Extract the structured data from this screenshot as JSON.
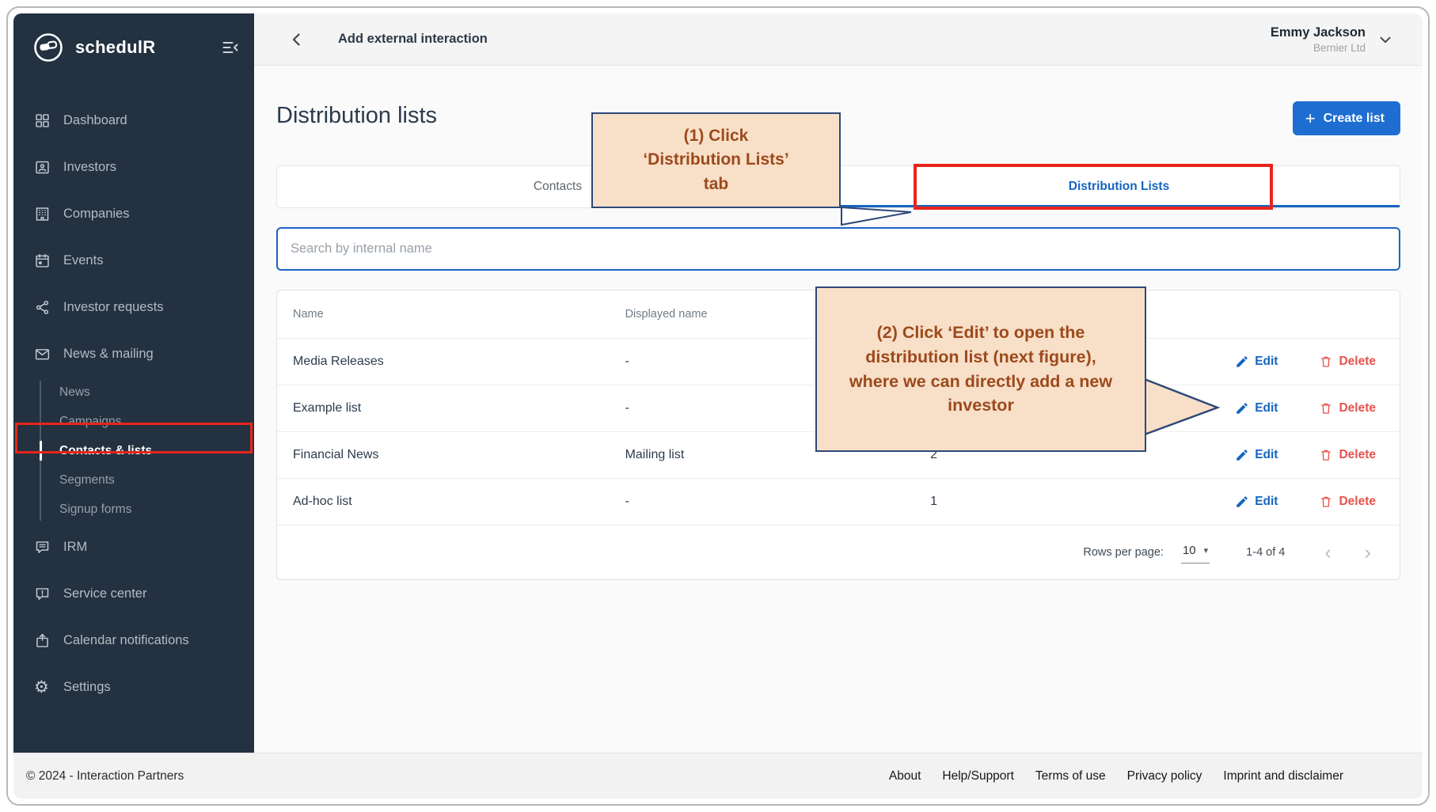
{
  "brand": {
    "name": "schedulR"
  },
  "topbar": {
    "title": "Add external interaction",
    "user_name": "Emmy Jackson",
    "user_company": "Bernier Ltd"
  },
  "sidebar": {
    "items": [
      {
        "label": "Dashboard",
        "icon": "dashboard"
      },
      {
        "label": "Investors",
        "icon": "investors"
      },
      {
        "label": "Companies",
        "icon": "companies"
      },
      {
        "label": "Events",
        "icon": "events"
      },
      {
        "label": "Investor requests",
        "icon": "investor-requests"
      },
      {
        "label": "News & mailing",
        "icon": "news-mailing"
      }
    ],
    "subitems": [
      {
        "label": "News",
        "active": false
      },
      {
        "label": "Campaigns",
        "active": false
      },
      {
        "label": "Contacts & lists",
        "active": true
      },
      {
        "label": "Segments",
        "active": false
      },
      {
        "label": "Signup forms",
        "active": false
      }
    ],
    "items_bottom": [
      {
        "label": "IRM",
        "icon": "irm"
      },
      {
        "label": "Service center",
        "icon": "service-center"
      },
      {
        "label": "Calendar notifications",
        "icon": "calendar-notifications"
      },
      {
        "label": "Settings",
        "icon": "settings"
      }
    ]
  },
  "page": {
    "title": "Distribution lists",
    "create_button": "Create list"
  },
  "tabs": [
    {
      "label": "Contacts",
      "active": false
    },
    {
      "label": "Distribution Lists",
      "active": true
    }
  ],
  "search": {
    "placeholder": "Search by internal name"
  },
  "table": {
    "columns": [
      "Name",
      "Displayed name"
    ],
    "rows": [
      {
        "name": "Media Releases",
        "displayed_name": "-",
        "count": ""
      },
      {
        "name": "Example list",
        "displayed_name": "-",
        "count": ""
      },
      {
        "name": "Financial News",
        "displayed_name": "Mailing list",
        "count": "2"
      },
      {
        "name": "Ad-hoc list",
        "displayed_name": "-",
        "count": "1"
      }
    ],
    "edit_label": "Edit",
    "delete_label": "Delete",
    "pagination": {
      "rows_per_page_label": "Rows per page:",
      "rows_per_page_value": "10",
      "range_label": "1-4 of 4"
    }
  },
  "annotations": {
    "callout1_text": "(1) Click\n‘Distribution Lists’\ntab",
    "callout2_text": "(2) Click ‘Edit’ to open the\ndistribution list (next figure),\nwhere we can directly add a new\ninvestor"
  },
  "footer": {
    "copyright": "© 2024 - Interaction Partners",
    "links": [
      "About",
      "Help/Support",
      "Terms of use",
      "Privacy policy",
      "Imprint and disclaimer"
    ]
  },
  "colors": {
    "sidebar_bg": "#233140",
    "accent_blue": "#1565c0",
    "button_blue": "#1e6ed2",
    "delete_red": "#e5534d",
    "annotation_red": "#ea241b",
    "callout_fill": "#f8dfc8",
    "callout_border": "#2e4878",
    "callout_text": "#9c4a1c"
  }
}
